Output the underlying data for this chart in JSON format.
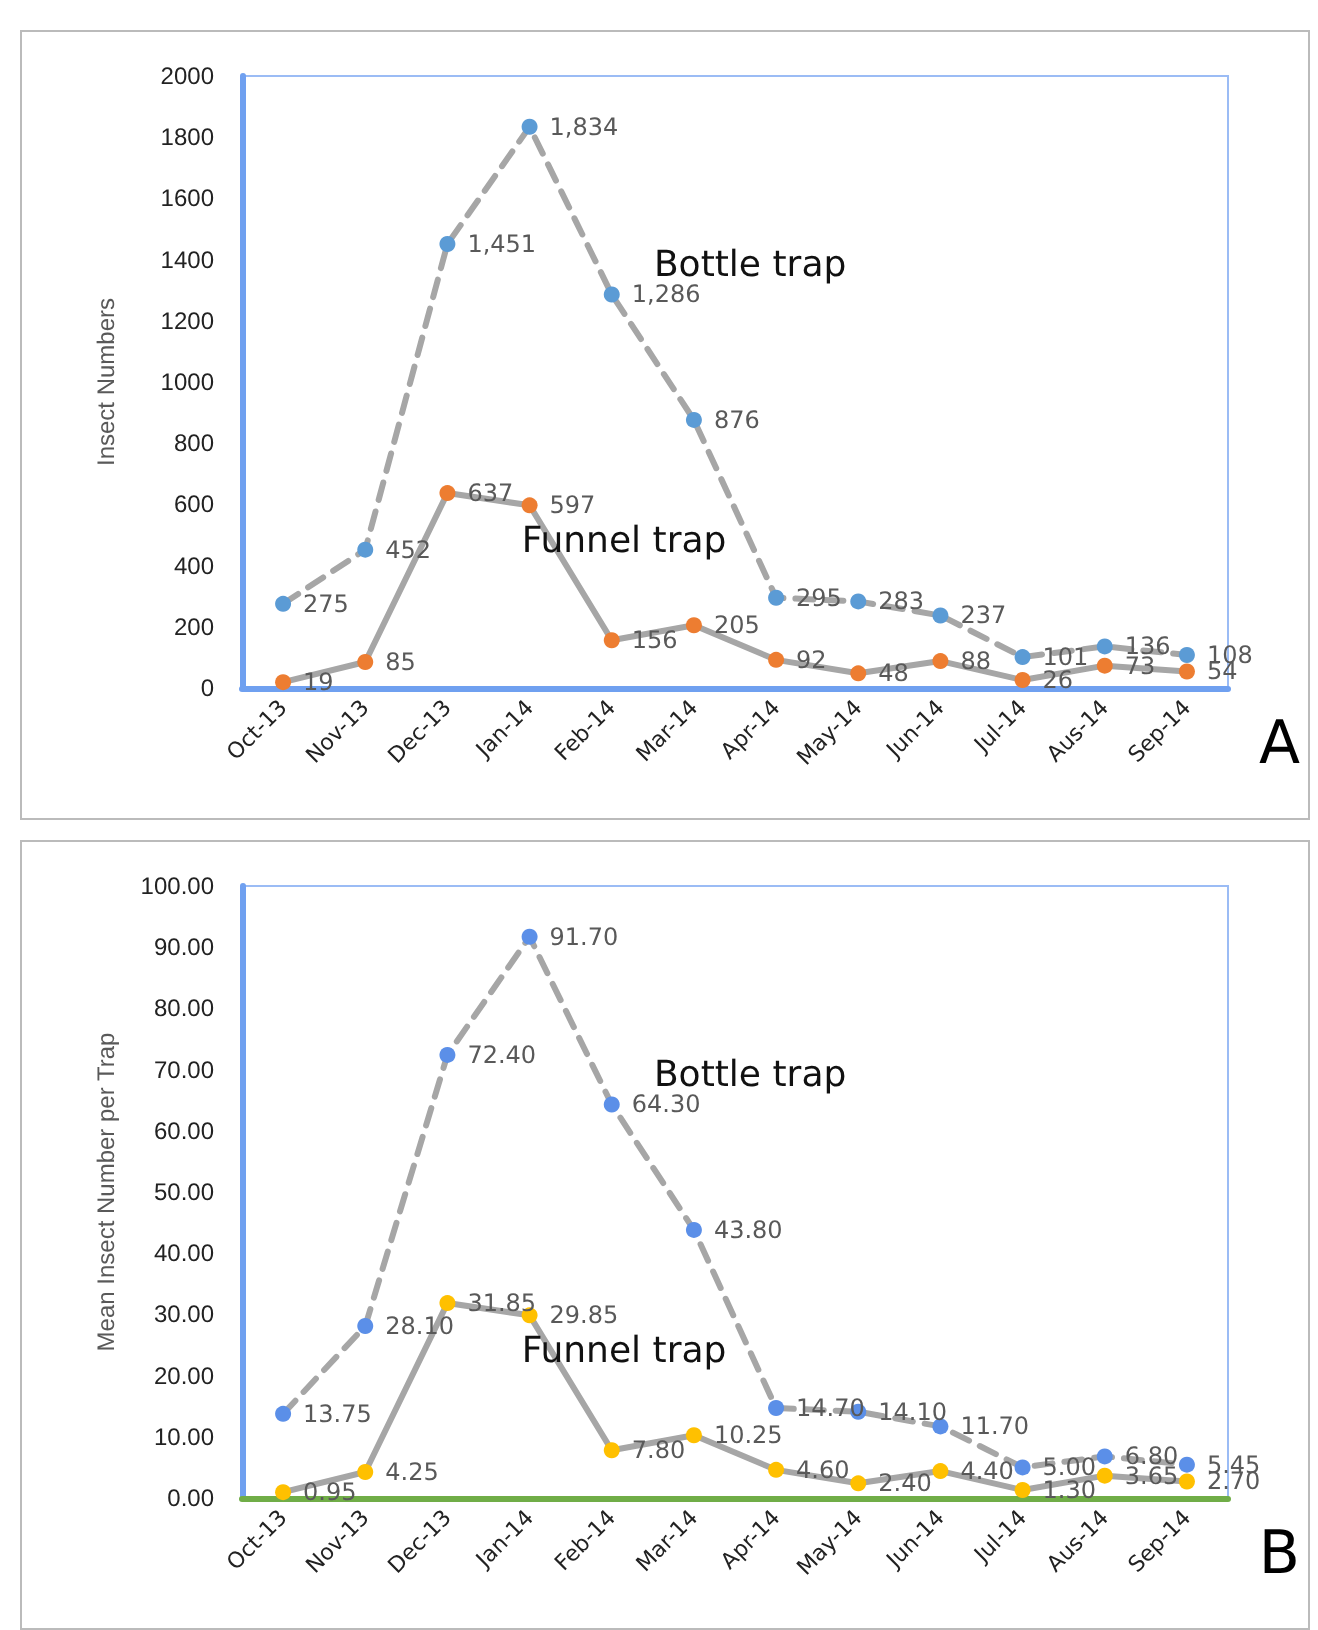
{
  "chart_data": [
    {
      "type": "line",
      "ylabel": "Insect Numbers",
      "categories": [
        "Oct-13",
        "Nov-13",
        "Dec-13",
        "Jan-14",
        "Feb-14",
        "Mar-14",
        "Apr-14",
        "May-14",
        "Jun-14",
        "Jul-14",
        "Aus-14",
        "Sep-14"
      ],
      "series": [
        {
          "name": "Bottle trap",
          "color": "#5b9bd5",
          "line_style": "dashed",
          "values": [
            275,
            452,
            1451,
            1834,
            1286,
            876,
            295,
            283,
            237,
            101,
            136,
            108
          ],
          "value_labels": [
            "275",
            "452",
            "1,451",
            "1,834",
            "1,286",
            "876",
            "295",
            "283",
            "237",
            "101",
            "136",
            "108"
          ]
        },
        {
          "name": "Funnel trap",
          "color": "#ed7d31",
          "line_style": "solid",
          "values": [
            19,
            85,
            637,
            597,
            156,
            205,
            92,
            48,
            88,
            26,
            73,
            54
          ],
          "value_labels": [
            "19",
            "85",
            "637",
            "597",
            "156",
            "205",
            "92",
            "48",
            "88",
            "26",
            "73",
            "54"
          ]
        }
      ],
      "ylim": [
        0,
        2000
      ],
      "yticks": [
        0,
        200,
        400,
        600,
        800,
        1000,
        1200,
        1400,
        1600,
        1800,
        2000
      ],
      "marker": "circle",
      "annotations": [
        "A"
      ]
    },
    {
      "type": "line",
      "ylabel": "Mean Insect Number per Trap",
      "categories": [
        "Oct-13",
        "Nov-13",
        "Dec-13",
        "Jan-14",
        "Feb-14",
        "Mar-14",
        "Apr-14",
        "May-14",
        "Jun-14",
        "Jul-14",
        "Aus-14",
        "Sep-14"
      ],
      "series": [
        {
          "name": "Bottle trap",
          "color": "#5b8fe8",
          "line_style": "dashed",
          "values": [
            13.75,
            28.1,
            72.4,
            91.7,
            64.3,
            43.8,
            14.7,
            14.1,
            11.7,
            5.0,
            6.8,
            5.45
          ],
          "value_labels": [
            "13.75",
            "28.10",
            "72.40",
            "91.70",
            "64.30",
            "43.80",
            "14.70",
            "14.10",
            "11.70",
            "5.00",
            "6.80",
            "5.45"
          ]
        },
        {
          "name": "Funnel trap",
          "color": "#ffc000",
          "line_style": "solid",
          "values": [
            0.95,
            4.25,
            31.85,
            29.85,
            7.8,
            10.25,
            4.6,
            2.4,
            4.4,
            1.3,
            3.65,
            2.7
          ],
          "value_labels": [
            "0.95",
            "4.25",
            "31.85",
            "29.85",
            "7.80",
            "10.25",
            "4.60",
            "2.40",
            "4.40",
            "1.30",
            "3.65",
            "2.70"
          ]
        }
      ],
      "ylim": [
        0,
        100
      ],
      "yticks": [
        {
          "value": 0,
          "label": "0.00"
        },
        {
          "value": 10,
          "label": "10.00"
        },
        {
          "value": 20,
          "label": "20.00"
        },
        {
          "value": 30,
          "label": "30.00"
        },
        {
          "value": 40,
          "label": "40.00"
        },
        {
          "value": 50,
          "label": "50.00"
        },
        {
          "value": 60,
          "label": "60.00"
        },
        {
          "value": 70,
          "label": "70.00"
        },
        {
          "value": 80,
          "label": "80.00"
        },
        {
          "value": 90,
          "label": "90.00"
        },
        {
          "value": 100,
          "label": "100.00"
        }
      ],
      "marker": "circle",
      "annotations": [
        "B"
      ]
    }
  ]
}
